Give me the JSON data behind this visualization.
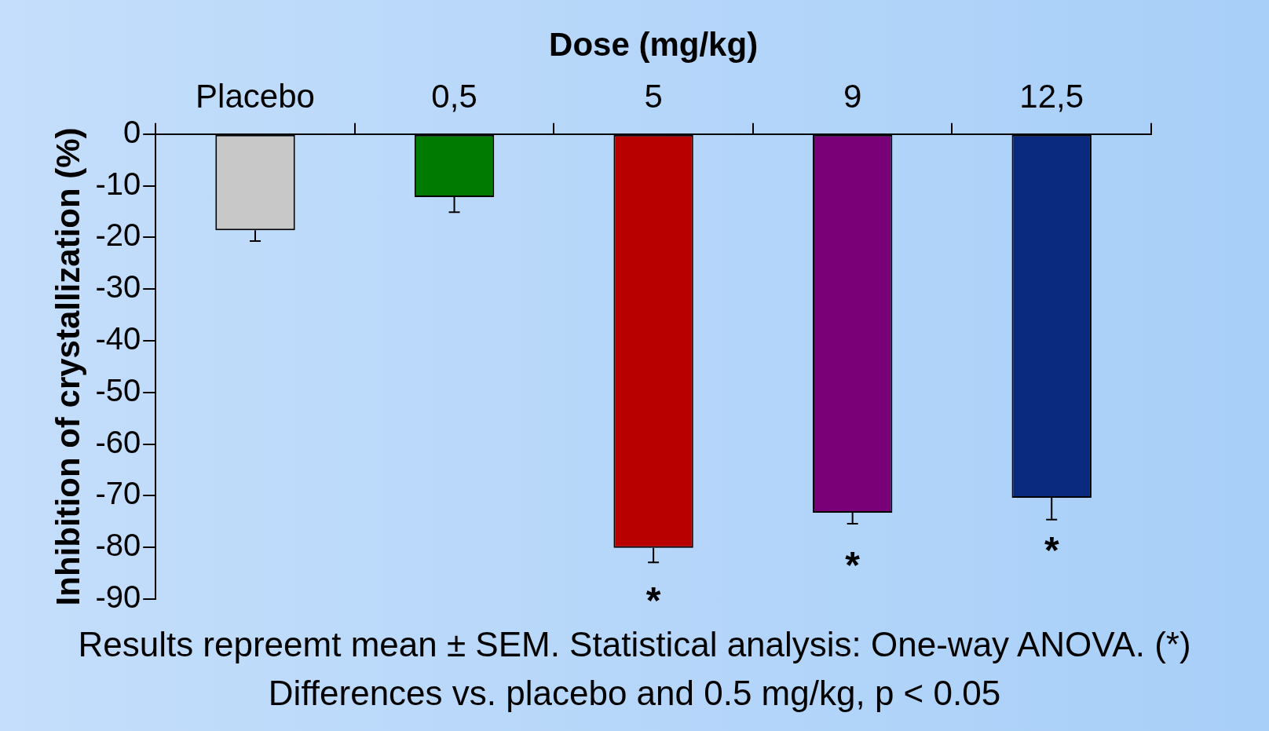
{
  "chart_data": {
    "type": "bar",
    "xlabel": "Dose (mg/kg)",
    "ylabel": "Inhibition of crystallization (%)",
    "categories": [
      "Placebo",
      "0,5",
      "5",
      "9",
      "12,5"
    ],
    "values": [
      -18.6,
      -12.2,
      -80.1,
      -73.3,
      -70.4
    ],
    "colors": [
      "#c8c8c8",
      "#007a00",
      "#b80000",
      "#7a0078",
      "#0a2a80"
    ],
    "errors": [
      [
        -20.7,
        -18.6
      ],
      [
        -15.1,
        -12.2
      ],
      [
        -82.9,
        -80.1
      ],
      [
        -75.4,
        -73.3
      ],
      [
        -74.6,
        -70.4
      ]
    ],
    "ylim": [
      -90,
      0
    ],
    "yticks": [
      0,
      -10,
      -20,
      -30,
      -40,
      -50,
      -60,
      -70,
      -80,
      -90
    ],
    "grid": false,
    "legend": false,
    "annotations": [
      {
        "text": "*",
        "x": "5",
        "y": -80.1
      },
      {
        "text": "*",
        "x": "9",
        "y": -73.3
      },
      {
        "text": "*",
        "x": "12,5",
        "y": -70.4
      },
      "Results repreemt mean ± SEM. Statistical analysis: One-way ANOVA. (*) Differences vs. placebo and 0.5 mg/kg, p < 0.05"
    ]
  }
}
